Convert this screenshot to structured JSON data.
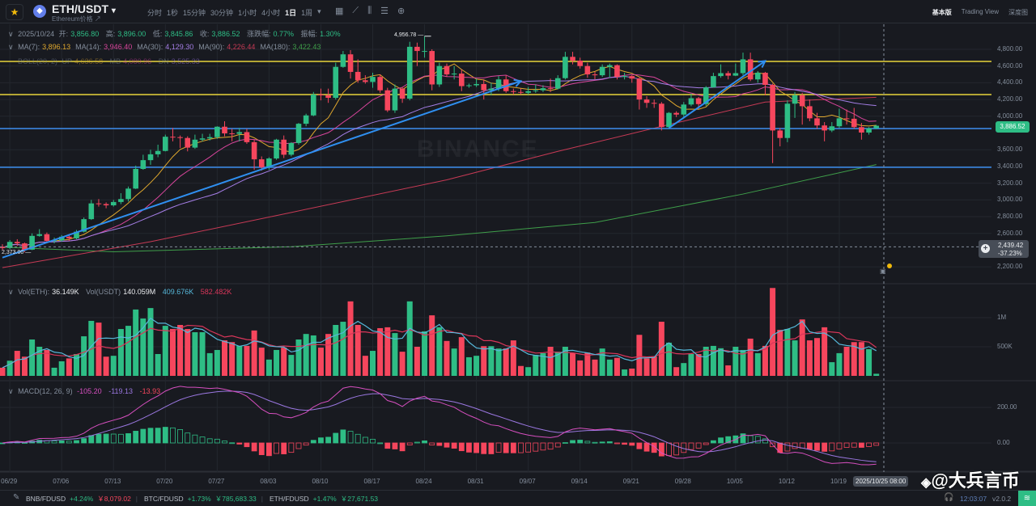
{
  "header": {
    "symbol": "ETH/USDT",
    "symbol_caret": "▾",
    "subtitle": "Ethereum价格 ↗",
    "intervals": [
      {
        "label": "分时",
        "active": false
      },
      {
        "label": "1秒",
        "active": false
      },
      {
        "label": "15分钟",
        "active": false
      },
      {
        "label": "30分钟",
        "active": false
      },
      {
        "label": "1小时",
        "active": false
      },
      {
        "label": "4小时",
        "active": false
      },
      {
        "label": "1日",
        "active": true
      },
      {
        "label": "1周",
        "active": false
      },
      {
        "label": "▾",
        "active": false
      }
    ],
    "tool_icons": [
      "calendar-plus-icon",
      "indicator-icon",
      "candle-type-icon",
      "settings-sliders-icon",
      "plus-circle-icon"
    ],
    "views": [
      {
        "label": "基本版",
        "active": true
      },
      {
        "label": "Trading View",
        "active": false
      },
      {
        "label": "深度图",
        "active": false
      }
    ]
  },
  "legend": {
    "ohlc": {
      "date": "2025/10/24",
      "open_label": "开:",
      "open": "3,856.80",
      "high_label": "高:",
      "high": "3,896.00",
      "low_label": "低:",
      "low": "3,845.86",
      "close_label": "收:",
      "close": "3,886.52",
      "change_label": "涨跌幅:",
      "change": "0.77%",
      "amplitude_label": "振幅:",
      "amplitude": "1.30%"
    },
    "ma": [
      {
        "label": "MA(7):",
        "value": "3,896.13",
        "color": "#e0a82e"
      },
      {
        "label": "MA(14):",
        "value": "3,946.40",
        "color": "#d9459c"
      },
      {
        "label": "MA(30):",
        "value": "4,129.30",
        "color": "#a57ee6"
      },
      {
        "label": "MA(90):",
        "value": "4,226.44",
        "color": "#c73a55"
      },
      {
        "label": "MA(180):",
        "value": "3,422.43",
        "color": "#3f9f4a"
      }
    ],
    "boll": {
      "label": "BOLL(20, 2)",
      "up_label": "UP",
      "up": "4,636.58",
      "mb_label": "MB",
      "mb": "4,080.96",
      "dn_label": "DN",
      "dn": "3,525.33"
    },
    "vol": {
      "label": "Vol(ETH):",
      "value": "36.149K",
      "usdt_label": "Vol(USDT)",
      "usdt_value": "140.059M",
      "ma5": "409.676K",
      "ma10": "582.482K"
    },
    "macd": {
      "label": "MACD(12, 26, 9)",
      "dif": "-105.20",
      "dea": "-119.13",
      "hist": "-13.93"
    }
  },
  "price_axis": {
    "ticks": [
      "4,800.00",
      "4,600.00",
      "4,400.00",
      "4,200.00",
      "4,000.00",
      "3,600.00",
      "3,400.00",
      "3,200.00",
      "3,000.00",
      "2,800.00",
      "2,600.00",
      "2,200.00"
    ],
    "tick_values": [
      4800,
      4600,
      4400,
      4200,
      4000,
      3600,
      3400,
      3200,
      3000,
      2800,
      2600,
      2200
    ],
    "current_price": "3,886.52",
    "crosshair_price": "2,439.42",
    "crosshair_pct": "-37.23%",
    "high_marker": "4,956.78",
    "low_marker": "2,373.00"
  },
  "volume_axis": {
    "ticks": [
      "1M",
      "500K"
    ],
    "tick_values": [
      1000,
      500
    ]
  },
  "macd_axis": {
    "ticks": [
      "200.00",
      "0.00"
    ],
    "tick_values": [
      200,
      0
    ]
  },
  "date_axis": {
    "ticks": [
      "06/29",
      "07/06",
      "07/13",
      "07/20",
      "07/27",
      "08/03",
      "08/10",
      "08/17",
      "08/24",
      "08/31",
      "09/07",
      "09/14",
      "09/21",
      "09/28",
      "10/05",
      "10/12",
      "10/19"
    ],
    "crosshair_label": "2025/10/25 08:00"
  },
  "watermarks": {
    "center": "BINANCE",
    "author": "@大兵言币"
  },
  "bottom_bar": {
    "tickers": [
      {
        "pair": "BNB/FDUSD",
        "change": "+4.24%",
        "price": "￥8,079.02",
        "price_color": "#f6465d"
      },
      {
        "pair": "BTC/FDUSD",
        "change": "+1.73%",
        "price": "￥785,683.33",
        "price_color": "#2ebd85"
      },
      {
        "pair": "ETH/FDUSD",
        "change": "+1.47%",
        "price": "￥27,671.53",
        "price_color": "#2ebd85"
      }
    ],
    "time": "12:03:07",
    "version": "v2.0.2"
  },
  "colors": {
    "up": "#2ebd85",
    "down": "#f6465d",
    "bg": "#181a20",
    "grid": "#23272e",
    "hline_yellow": "#e8d53a",
    "hline_blue": "#3a86e0",
    "trend": "#2f8ff0",
    "vol_ma5": "#56b8da",
    "vol_ma10": "#d9365a",
    "dif": "#d64fbf",
    "dea": "#9a77e0"
  },
  "chart_data": {
    "type": "candlestick",
    "x_start": "2025-06-28",
    "interval": "1d",
    "ylim": [
      2150,
      4900
    ],
    "grid": true,
    "open": [
      2440,
      2425,
      2498,
      2480,
      2405,
      2570,
      2590,
      2510,
      2515,
      2560,
      2540,
      2620,
      2770,
      2958,
      2950,
      2935,
      2975,
      3010,
      3135,
      3370,
      3475,
      3545,
      3585,
      3755,
      3750,
      3740,
      3625,
      3720,
      3735,
      3750,
      3875,
      3795,
      3790,
      3810,
      3690,
      3485,
      3390,
      3495,
      3720,
      3540,
      3680,
      3910,
      4010,
      4260,
      4250,
      4220,
      4590,
      4740,
      4530,
      4430,
      4410,
      4470,
      4310,
      4070,
      4330,
      4210,
      4830,
      4780,
      4780,
      4380,
      4600,
      4500,
      4510,
      4360,
      4370,
      4385,
      4310,
      4330,
      4440,
      4300,
      4290,
      4280,
      4300,
      4310,
      4335,
      4330,
      4455,
      4710,
      4665,
      4600,
      4500,
      4490,
      4590,
      4610,
      4470,
      4480,
      4450,
      4200,
      4160,
      4150,
      3870,
      4040,
      4020,
      4140,
      4215,
      4145,
      4345,
      4480,
      4515,
      4485,
      4515,
      4680,
      4440,
      4520,
      4375,
      3830,
      3740,
      4150,
      4250,
      4120,
      3975,
      3890,
      3830,
      3880,
      3975,
      3970,
      3870,
      3805,
      3856.8
    ],
    "high": [
      2470,
      2520,
      2530,
      2490,
      2600,
      2650,
      2610,
      2550,
      2580,
      2590,
      2640,
      2790,
      3000,
      3010,
      2970,
      3000,
      3080,
      3160,
      3410,
      3540,
      3600,
      3660,
      3780,
      3860,
      3770,
      3760,
      3780,
      3790,
      3790,
      3880,
      3940,
      3850,
      3860,
      3850,
      3720,
      3520,
      3510,
      3730,
      3770,
      3690,
      3920,
      4030,
      4290,
      4330,
      4330,
      4640,
      4780,
      4790,
      4680,
      4490,
      4520,
      4500,
      4340,
      4380,
      4350,
      4890,
      4880,
      4956.78,
      4800,
      4640,
      4630,
      4600,
      4560,
      4390,
      4450,
      4440,
      4400,
      4480,
      4490,
      4330,
      4330,
      4350,
      4380,
      4370,
      4450,
      4490,
      4770,
      4770,
      4700,
      4640,
      4530,
      4620,
      4630,
      4620,
      4520,
      4490,
      4460,
      4240,
      4200,
      4170,
      4050,
      4060,
      4170,
      4270,
      4230,
      4360,
      4520,
      4620,
      4540,
      4630,
      4760,
      4760,
      4540,
      4530,
      4390,
      3860,
      4190,
      4290,
      4280,
      4200,
      4040,
      3930,
      3930,
      4090,
      4080,
      4100,
      3920,
      3870,
      3896.0
    ],
    "low": [
      2400,
      2410,
      2450,
      2373,
      2400,
      2560,
      2490,
      2480,
      2500,
      2510,
      2530,
      2610,
      2760,
      2920,
      2900,
      2920,
      2950,
      2980,
      3130,
      3360,
      3420,
      3510,
      3580,
      3700,
      3620,
      3580,
      3610,
      3700,
      3710,
      3730,
      3760,
      3700,
      3700,
      3670,
      3360,
      3350,
      3360,
      3480,
      3500,
      3520,
      3660,
      3880,
      4000,
      4190,
      4160,
      4200,
      4580,
      4450,
      4400,
      4390,
      4340,
      4280,
      4050,
      4040,
      4160,
      4190,
      4600,
      4700,
      4310,
      4350,
      4470,
      4440,
      4300,
      4340,
      4350,
      4200,
      4250,
      4300,
      4280,
      4260,
      4260,
      4260,
      4280,
      4290,
      4290,
      4320,
      4440,
      4620,
      4570,
      4460,
      4440,
      4470,
      4460,
      4440,
      4440,
      4400,
      4080,
      4100,
      4100,
      3830,
      3850,
      3990,
      3990,
      4120,
      4090,
      4120,
      4340,
      4460,
      4440,
      4480,
      4490,
      4420,
      4400,
      4250,
      3440,
      3640,
      3690,
      3980,
      3900,
      3940,
      3850,
      3700,
      3810,
      3860,
      3900,
      3850,
      3720,
      3780,
      3845.86
    ],
    "close": [
      2425,
      2498,
      2480,
      2405,
      2570,
      2590,
      2510,
      2515,
      2560,
      2540,
      2620,
      2770,
      2958,
      2950,
      2935,
      2975,
      3010,
      3135,
      3370,
      3475,
      3545,
      3585,
      3755,
      3750,
      3740,
      3625,
      3720,
      3735,
      3750,
      3875,
      3795,
      3790,
      3810,
      3690,
      3485,
      3390,
      3495,
      3720,
      3540,
      3680,
      3910,
      4010,
      4260,
      4250,
      4220,
      4590,
      4740,
      4530,
      4430,
      4410,
      4470,
      4310,
      4070,
      4330,
      4210,
      4830,
      4780,
      4780,
      4380,
      4600,
      4500,
      4510,
      4360,
      4370,
      4385,
      4310,
      4330,
      4440,
      4300,
      4290,
      4280,
      4300,
      4310,
      4335,
      4330,
      4455,
      4710,
      4665,
      4600,
      4500,
      4490,
      4590,
      4610,
      4470,
      4480,
      4450,
      4200,
      4160,
      4150,
      3870,
      4040,
      4020,
      4140,
      4215,
      4145,
      4345,
      4480,
      4515,
      4485,
      4515,
      4680,
      4440,
      4520,
      4375,
      3830,
      3740,
      4150,
      4250,
      4120,
      3975,
      3890,
      3830,
      3880,
      3975,
      3970,
      3870,
      3805,
      3855,
      3886.52
    ],
    "volume_k": [
      140,
      260,
      430,
      330,
      625,
      500,
      445,
      140,
      250,
      300,
      375,
      680,
      945,
      915,
      330,
      345,
      805,
      860,
      1140,
      985,
      1165,
      375,
      860,
      805,
      875,
      805,
      750,
      750,
      390,
      445,
      610,
      580,
      515,
      515,
      780,
      485,
      280,
      445,
      485,
      360,
      625,
      720,
      695,
      485,
      720,
      875,
      930,
      1280,
      875,
      345,
      430,
      820,
      835,
      735,
      415,
      1280,
      500,
      765,
      1040,
      835,
      600,
      470,
      665,
      320,
      345,
      510,
      510,
      470,
      470,
      610,
      170,
      150,
      360,
      390,
      500,
      415,
      500,
      390,
      265,
      400,
      280,
      470,
      280,
      310,
      110,
      125,
      705,
      300,
      335,
      930,
      570,
      150,
      220,
      375,
      375,
      500,
      515,
      475,
      180,
      500,
      445,
      640,
      390,
      515,
      1510,
      790,
      805,
      610,
      970,
      610,
      650,
      835,
      235,
      390,
      500,
      580,
      580,
      460,
      36
    ],
    "ma90_points": [
      [
        "06/28",
        2190
      ],
      [
        "07/18",
        2500
      ],
      [
        "08/06",
        2850
      ],
      [
        "08/27",
        3240
      ],
      [
        "09/11",
        3580
      ],
      [
        "09/26",
        3900
      ],
      [
        "10/09",
        4170
      ],
      [
        "10/24",
        4226.44
      ]
    ],
    "ma180_points": [
      [
        "06/28",
        2435
      ],
      [
        "07/13",
        2380
      ],
      [
        "08/06",
        2440
      ],
      [
        "08/27",
        2570
      ],
      [
        "09/16",
        2730
      ],
      [
        "10/06",
        3070
      ],
      [
        "10/24",
        3422.43
      ]
    ],
    "drawings": {
      "horizontal_lines": [
        {
          "price": 4655,
          "color": "#e8d53a"
        },
        {
          "price": 4259,
          "color": "#e8d53a"
        },
        {
          "price": 3853,
          "color": "#3a86e0"
        },
        {
          "price": 3390,
          "color": "#3a86e0"
        }
      ],
      "trendlines": [
        {
          "from": [
            "06/28",
            2310
          ],
          "to": [
            "09/06",
            4420
          ]
        },
        {
          "from": [
            "09/26",
            3860
          ],
          "to": [
            "10/09",
            4660
          ]
        }
      ],
      "crosshair_price": 2439.42
    }
  }
}
